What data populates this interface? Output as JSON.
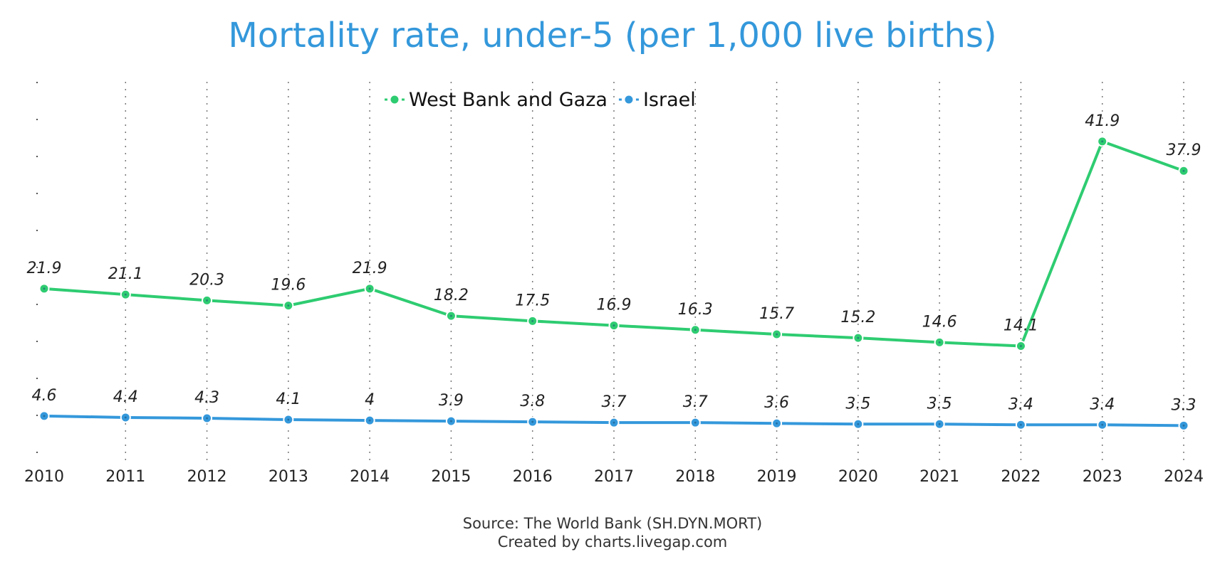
{
  "chart_data": {
    "type": "line",
    "title": "Mortality rate, under-5 (per 1,000 live births)",
    "x": [
      "2010",
      "2011",
      "2012",
      "2013",
      "2014",
      "2015",
      "2016",
      "2017",
      "2018",
      "2019",
      "2020",
      "2021",
      "2022",
      "2023",
      "2024"
    ],
    "series": [
      {
        "name": "West Bank and Gaza",
        "color": "#2ecc71",
        "values": [
          21.9,
          21.1,
          20.3,
          19.6,
          21.9,
          18.2,
          17.5,
          16.9,
          16.3,
          15.7,
          15.2,
          14.6,
          14.1,
          41.9,
          37.9
        ],
        "labels": [
          "21.9",
          "21.1",
          "20.3",
          "19.6",
          "21.9",
          "18.2",
          "17.5",
          "16.9",
          "16.3",
          "15.7",
          "15.2",
          "14.6",
          "14.1",
          "41.9",
          "37.9"
        ]
      },
      {
        "name": "Israel",
        "color": "#3498db",
        "values": [
          4.6,
          4.4,
          4.3,
          4.1,
          4.0,
          3.9,
          3.8,
          3.7,
          3.7,
          3.6,
          3.5,
          3.5,
          3.4,
          3.4,
          3.3
        ],
        "labels": [
          "4.6",
          "4.4",
          "4.3",
          "4.1",
          "4",
          "3.9",
          "3.8",
          "3.7",
          "3.7",
          "3.6",
          "3.5",
          "3.5",
          "3.4",
          "3.4",
          "3.3"
        ]
      }
    ],
    "ylim": [
      -1.5,
      50
    ],
    "xgrid": true,
    "ygrid": false,
    "legend_position": "top-center"
  },
  "footer": {
    "source": "Source: The World Bank (SH.DYN.MORT)",
    "credit": "Created by charts.livegap.com"
  }
}
